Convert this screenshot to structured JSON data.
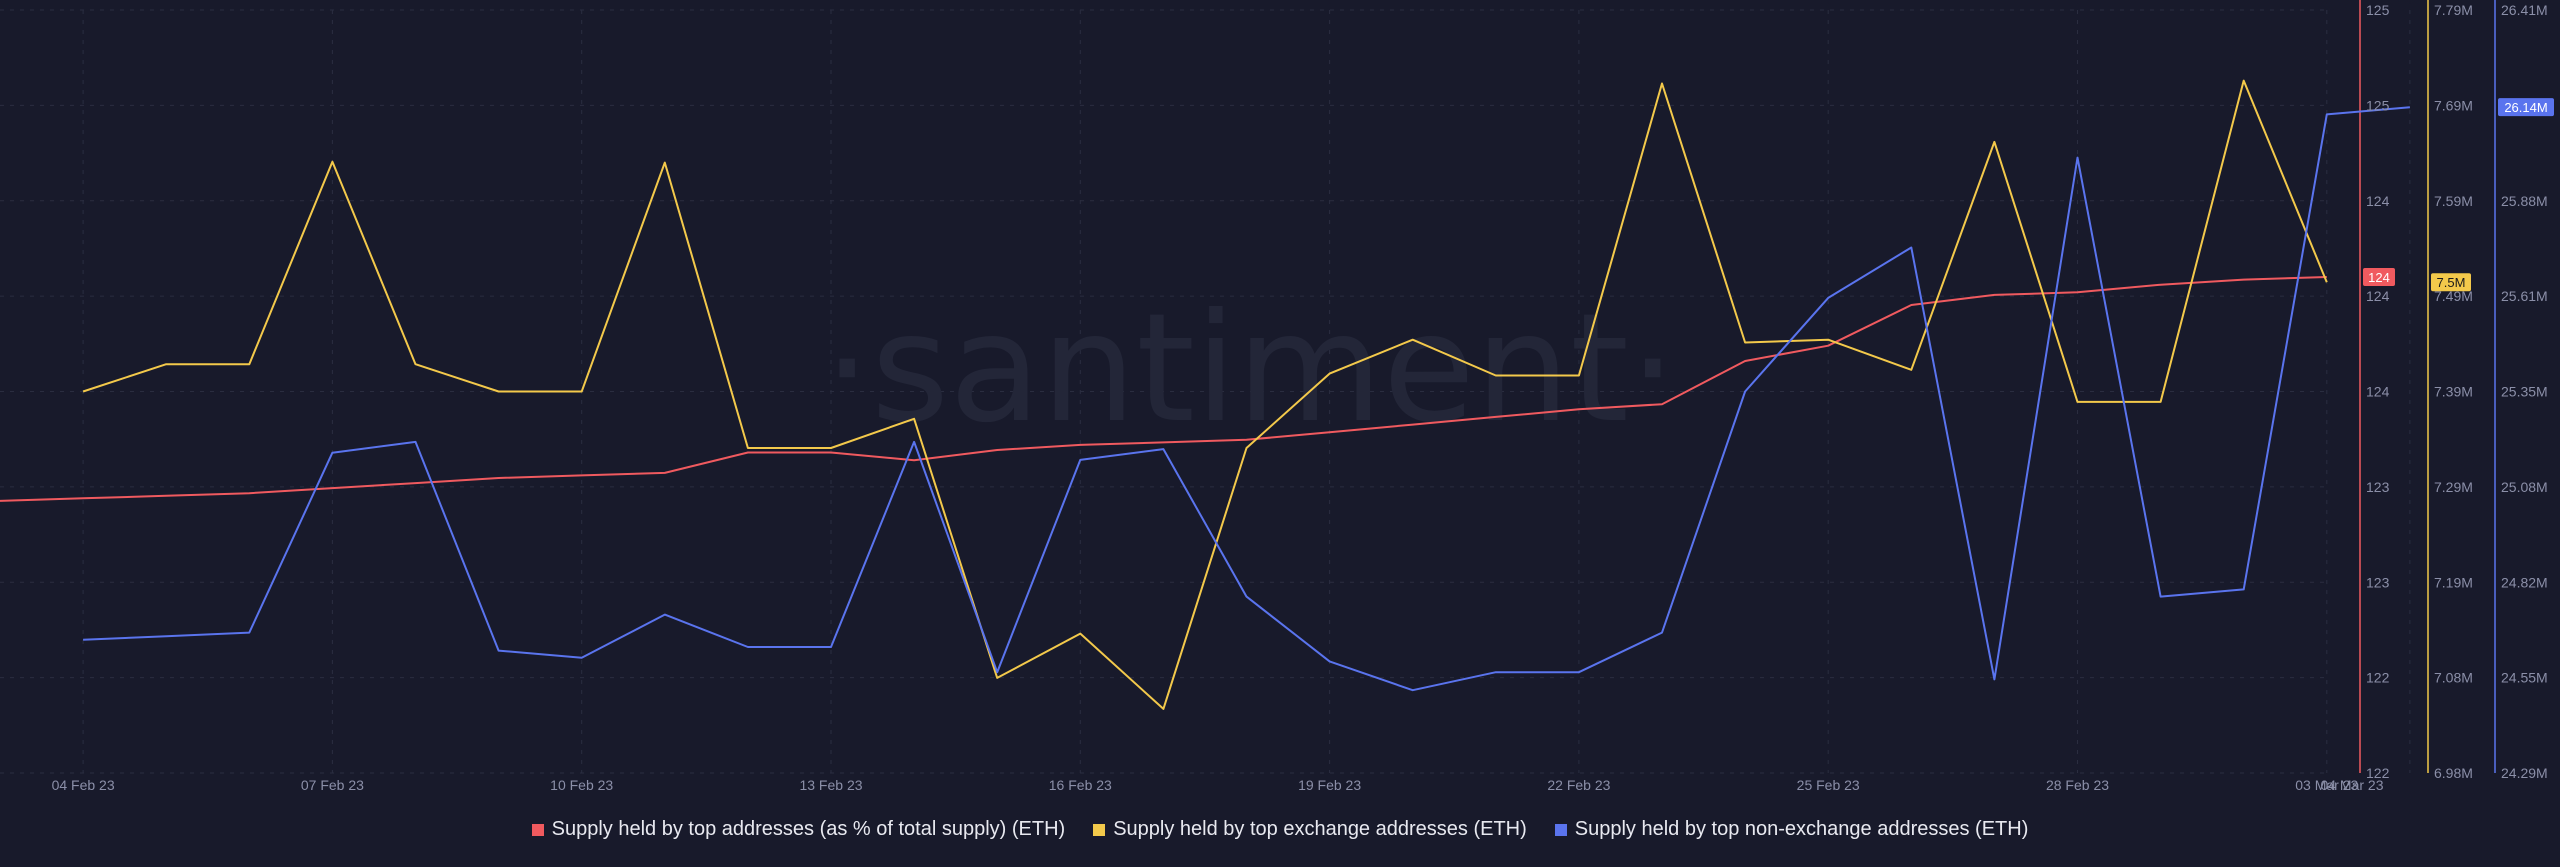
{
  "watermark": "·santiment·",
  "colors": {
    "red": "#f05a5f",
    "yellow": "#f3c94b",
    "blue": "#5a74ee",
    "bg": "#181a2b",
    "grid": "#2a2d40",
    "tick": "#8b8fa8"
  },
  "chart_data": {
    "type": "line",
    "grid": true,
    "legend_position": "bottom-center",
    "x_ticks": [
      "04 Feb 23",
      "07 Feb 23",
      "10 Feb 23",
      "13 Feb 23",
      "16 Feb 23",
      "19 Feb 23",
      "22 Feb 23",
      "25 Feb 23",
      "28 Feb 23",
      "03 Mar 23",
      "04 Mar 23"
    ],
    "x": [
      "03 Feb 23",
      "04 Feb 23",
      "05 Feb 23",
      "06 Feb 23",
      "07 Feb 23",
      "08 Feb 23",
      "09 Feb 23",
      "10 Feb 23",
      "11 Feb 23",
      "12 Feb 23",
      "13 Feb 23",
      "14 Feb 23",
      "15 Feb 23",
      "16 Feb 23",
      "17 Feb 23",
      "18 Feb 23",
      "19 Feb 23",
      "20 Feb 23",
      "21 Feb 23",
      "22 Feb 23",
      "23 Feb 23",
      "24 Feb 23",
      "25 Feb 23",
      "26 Feb 23",
      "27 Feb 23",
      "28 Feb 23",
      "01 Mar 23",
      "02 Mar 23",
      "03 Mar 23",
      "04 Mar 23"
    ],
    "axes": [
      {
        "id": "red",
        "ticks": [
          "125",
          "125",
          "124",
          "124",
          "124",
          "123",
          "123",
          "122",
          "122"
        ],
        "range": [
          122.0,
          125.0
        ],
        "current_label": "124"
      },
      {
        "id": "yellow",
        "ticks": [
          "7.79M",
          "7.69M",
          "7.59M",
          "7.49M",
          "7.39M",
          "7.29M",
          "7.19M",
          "7.08M",
          "6.98M"
        ],
        "range": [
          6.98,
          7.79
        ],
        "current_label": "7.5M"
      },
      {
        "id": "blue",
        "ticks": [
          "26.41M",
          "26.14M",
          "25.88M",
          "25.61M",
          "25.35M",
          "25.08M",
          "24.82M",
          "24.55M",
          "24.29M"
        ],
        "range": [
          24.29,
          26.41
        ],
        "current_label": "26.14M"
      }
    ],
    "series": [
      {
        "name": "Supply held by top addresses (as % of total supply) (ETH)",
        "color": "#f05a5f",
        "axis": 0,
        "values": [
          123.07,
          123.08,
          123.09,
          123.1,
          123.12,
          123.14,
          123.16,
          123.17,
          123.18,
          123.26,
          123.26,
          123.23,
          123.27,
          123.29,
          123.3,
          123.31,
          123.34,
          123.37,
          123.4,
          123.43,
          123.45,
          123.62,
          123.68,
          123.84,
          123.88,
          123.89,
          123.92,
          123.94,
          123.95,
          null
        ]
      },
      {
        "name": "Supply held by top exchange addresses (ETH)",
        "color": "#f3c94b",
        "axis": 1,
        "values": [
          null,
          7.385,
          7.414,
          7.414,
          7.629,
          7.414,
          7.385,
          7.385,
          7.628,
          7.325,
          7.325,
          7.356,
          7.081,
          7.128,
          7.048,
          7.325,
          7.404,
          7.44,
          7.402,
          7.402,
          7.712,
          7.437,
          7.44,
          7.408,
          7.65,
          7.374,
          7.374,
          7.715,
          7.501,
          null
        ]
      },
      {
        "name": "Supply held by top non-exchange addresses (ETH)",
        "color": "#5a74ee",
        "axis": 2,
        "values": [
          null,
          24.66,
          24.67,
          24.68,
          25.18,
          25.21,
          24.63,
          24.61,
          24.73,
          24.64,
          24.64,
          25.21,
          24.57,
          25.16,
          25.19,
          24.78,
          24.6,
          24.52,
          24.57,
          24.57,
          24.68,
          25.35,
          25.61,
          25.75,
          24.55,
          26.0,
          24.78,
          24.8,
          26.12,
          26.14
        ]
      }
    ]
  }
}
